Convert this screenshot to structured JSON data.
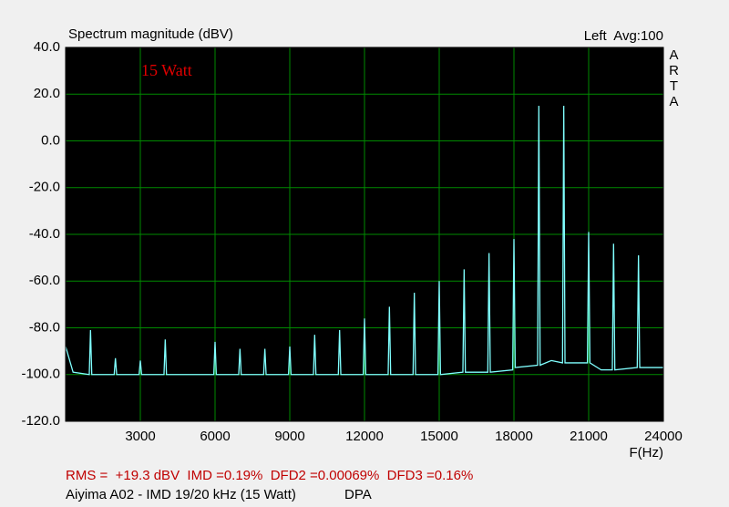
{
  "chart_data": {
    "type": "line",
    "title": "Spectrum magnitude (dBV)",
    "header_right": "Left  Avg:100",
    "watermark": "ARTA",
    "annotation": "15 Watt",
    "x_label": "F(Hz)",
    "footer_stats": "RMS =  +19.3 dBV  IMD =0.19%  DFD2 =0.00069%  DFD3 =0.16%",
    "footer_caption": "Aiyima A02 - IMD 19/20 kHz (15 Watt)",
    "footer_source": "DPA",
    "color": "#80ffff",
    "grid": true,
    "x": [
      0,
      300,
      950,
      1000,
      1050,
      1950,
      2000,
      2050,
      2950,
      3000,
      3050,
      3950,
      4000,
      4050,
      5950,
      6000,
      6050,
      6950,
      7000,
      7050,
      7950,
      8000,
      8050,
      8950,
      9000,
      9050,
      9950,
      10000,
      10050,
      10950,
      11000,
      11050,
      11950,
      12000,
      12050,
      12950,
      13000,
      13050,
      13950,
      14000,
      14050,
      14950,
      15000,
      15050,
      15950,
      16000,
      16050,
      16950,
      17000,
      17050,
      17950,
      18000,
      18050,
      18950,
      19000,
      19050,
      19500,
      19950,
      20000,
      20050,
      20500,
      20950,
      21000,
      21050,
      21500,
      21950,
      22000,
      22050,
      22950,
      23000,
      23050,
      24000
    ],
    "values": [
      -88,
      -99,
      -100,
      -81,
      -100,
      -100,
      -93,
      -100,
      -100,
      -94,
      -100,
      -100,
      -85,
      -100,
      -100,
      -86,
      -100,
      -100,
      -89,
      -100,
      -100,
      -89,
      -100,
      -100,
      -88,
      -100,
      -100,
      -83,
      -100,
      -100,
      -81,
      -100,
      -100,
      -76,
      -100,
      -100,
      -71,
      -100,
      -100,
      -65,
      -100,
      -100,
      -60,
      -100,
      -99,
      -55,
      -99,
      -99,
      -48,
      -99,
      -98,
      -42,
      -97,
      -96,
      15,
      -96,
      -94,
      -95,
      15,
      -95,
      -95,
      -95,
      -39,
      -95,
      -98,
      -98,
      -44,
      -98,
      -97,
      -49,
      -97,
      -97
    ],
    "xlim": [
      0,
      24000
    ],
    "xticks": [
      3000,
      6000,
      9000,
      12000,
      15000,
      18000,
      21000,
      24000
    ],
    "ylim": [
      -120,
      40
    ],
    "yticks": [
      {
        "value": 40,
        "label": "40.0"
      },
      {
        "value": 20,
        "label": "20.0"
      },
      {
        "value": 0,
        "label": "0.0"
      },
      {
        "value": -20,
        "label": "-20.0"
      },
      {
        "value": -40,
        "label": "-40.0"
      },
      {
        "value": -60,
        "label": "-60.0"
      },
      {
        "value": -80,
        "label": "-80.0"
      },
      {
        "value": -100,
        "label": "-100.0"
      },
      {
        "value": -120,
        "label": "-120.0"
      }
    ]
  }
}
